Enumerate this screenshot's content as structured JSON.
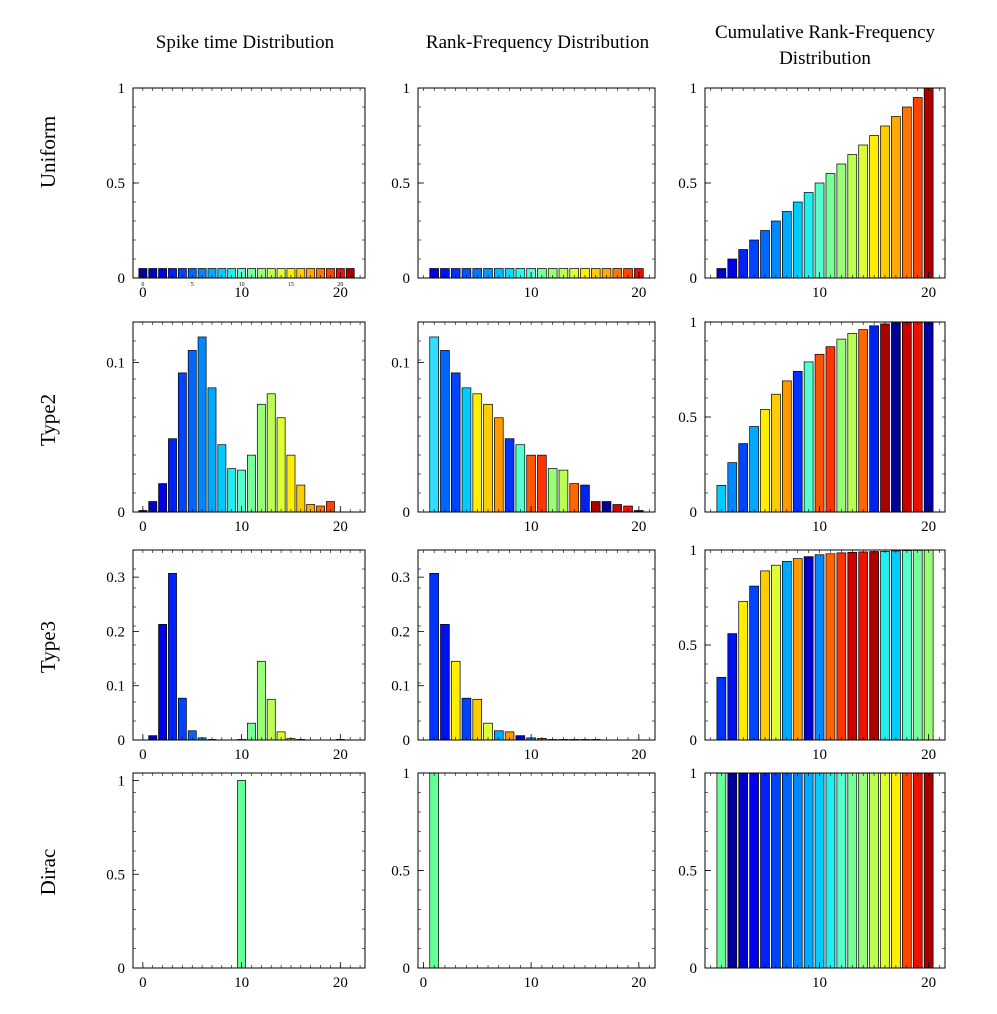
{
  "column_titles": [
    "Spike time Distribution",
    "Rank-Frequency Distribution",
    "Cumulative Rank-Frequency Distribution"
  ],
  "row_titles": [
    "Uniform",
    "Type2",
    "Type3",
    "Dirac"
  ],
  "chart_data": [
    {
      "type": "bar",
      "row": "Uniform",
      "column": "Spike time Distribution",
      "x": [
        0,
        1,
        2,
        3,
        4,
        5,
        6,
        7,
        8,
        9,
        10,
        11,
        12,
        13,
        14,
        15,
        16,
        17,
        18,
        19,
        20,
        21
      ],
      "values": [
        0.05,
        0.05,
        0.05,
        0.05,
        0.05,
        0.05,
        0.05,
        0.05,
        0.05,
        0.05,
        0.05,
        0.05,
        0.05,
        0.05,
        0.05,
        0.05,
        0.05,
        0.05,
        0.05,
        0.05,
        0.05,
        0.05
      ],
      "colors": [
        "#0000b0",
        "#0000cc",
        "#0000ee",
        "#0022ff",
        "#0044ff",
        "#0066ff",
        "#0088ff",
        "#00aaff",
        "#00ccff",
        "#22eeee",
        "#55ffcc",
        "#77ff99",
        "#99ff77",
        "#bbff55",
        "#ddff33",
        "#ffee00",
        "#ffcc00",
        "#ffaa00",
        "#ff7700",
        "#ff4400",
        "#ee1100",
        "#aa0000"
      ],
      "xlim": [
        -1,
        22.5
      ],
      "ylim": [
        0,
        1
      ],
      "xticks": [
        0,
        10,
        20
      ],
      "yticks": [
        0,
        0.5,
        1
      ],
      "ytick_labels": [
        "0",
        "0.5",
        "1"
      ],
      "minor_tick_labels": [
        {
          "x": 0,
          "label": "0"
        },
        {
          "x": 5,
          "label": "5"
        },
        {
          "x": 10,
          "label": "10"
        },
        {
          "x": 15,
          "label": "15"
        },
        {
          "x": 20,
          "label": "20"
        }
      ]
    },
    {
      "type": "bar",
      "row": "Uniform",
      "column": "Rank-Frequency Distribution",
      "x": [
        1,
        2,
        3,
        4,
        5,
        6,
        7,
        8,
        9,
        10,
        11,
        12,
        13,
        14,
        15,
        16,
        17,
        18,
        19,
        20
      ],
      "values": [
        0.05,
        0.05,
        0.05,
        0.05,
        0.05,
        0.05,
        0.05,
        0.05,
        0.05,
        0.05,
        0.05,
        0.05,
        0.05,
        0.05,
        0.05,
        0.05,
        0.05,
        0.05,
        0.05,
        0.05
      ],
      "colors": [
        "#0000dd",
        "#0011ff",
        "#0033ff",
        "#0055ff",
        "#0077ff",
        "#0099ff",
        "#00bbff",
        "#00ddff",
        "#22ffee",
        "#55ffcc",
        "#77ff99",
        "#99ff77",
        "#bbff55",
        "#ddff33",
        "#ffee00",
        "#ffcc00",
        "#ffaa00",
        "#ff7700",
        "#ff4400",
        "#ee1100"
      ],
      "xlim": [
        -0.5,
        21.5
      ],
      "ylim": [
        0,
        1
      ],
      "xticks": [
        10,
        20
      ],
      "yticks": [
        0,
        0.5,
        1
      ],
      "ytick_labels": [
        "0",
        "0.5",
        "1"
      ]
    },
    {
      "type": "bar",
      "row": "Uniform",
      "column": "Cumulative Rank-Frequency Distribution",
      "x": [
        1,
        2,
        3,
        4,
        5,
        6,
        7,
        8,
        9,
        10,
        11,
        12,
        13,
        14,
        15,
        16,
        17,
        18,
        19,
        20
      ],
      "values": [
        0.05,
        0.1,
        0.15,
        0.2,
        0.25,
        0.3,
        0.35,
        0.4,
        0.45,
        0.5,
        0.55,
        0.6,
        0.65,
        0.7,
        0.75,
        0.8,
        0.85,
        0.9,
        0.95,
        1.0
      ],
      "colors": [
        "#0000cc",
        "#0000ee",
        "#0022ff",
        "#0044ff",
        "#0066ff",
        "#0088ff",
        "#00aaff",
        "#00ccff",
        "#22eeee",
        "#55ffcc",
        "#77ff99",
        "#99ff77",
        "#bbff55",
        "#ddff33",
        "#ffee00",
        "#ffcc00",
        "#ffaa00",
        "#ff7700",
        "#ff4400",
        "#ee1100"
      ],
      "last_color": "#aa0000",
      "xlim": [
        -0.5,
        21.5
      ],
      "ylim": [
        0,
        1
      ],
      "xticks": [
        10,
        20
      ],
      "yticks": [
        0,
        0.5,
        1
      ],
      "ytick_labels": [
        "0",
        "0.5",
        "1"
      ]
    },
    {
      "type": "bar",
      "row": "Type2",
      "column": "Spike time Distribution",
      "x": [
        0,
        1,
        2,
        3,
        4,
        5,
        6,
        7,
        8,
        9,
        10,
        11,
        12,
        13,
        14,
        15,
        16,
        17,
        18,
        19,
        20,
        21
      ],
      "values": [
        0.001,
        0.007,
        0.019,
        0.049,
        0.093,
        0.108,
        0.117,
        0.083,
        0.045,
        0.029,
        0.028,
        0.038,
        0.072,
        0.079,
        0.063,
        0.038,
        0.018,
        0.005,
        0.004,
        0.007,
        0,
        0
      ],
      "colors": [
        "#0000b0",
        "#0000cc",
        "#0000ee",
        "#0022ff",
        "#0044ff",
        "#0066ff",
        "#0088ff",
        "#00aaff",
        "#00ccff",
        "#22eeee",
        "#55ffcc",
        "#77ff99",
        "#99ff77",
        "#bbff55",
        "#ddff33",
        "#ffee00",
        "#ffcc00",
        "#ffaa00",
        "#ff7700",
        "#ff4400",
        "#ee1100",
        "#aa0000"
      ],
      "xlim": [
        -1,
        22.5
      ],
      "ylim": [
        0,
        0.127
      ],
      "xticks": [
        0,
        10,
        20
      ],
      "yticks": [
        0,
        0.1
      ],
      "ytick_labels": [
        "0",
        "0.1"
      ]
    },
    {
      "type": "bar",
      "row": "Type2",
      "column": "Rank-Frequency Distribution",
      "x": [
        1,
        2,
        3,
        4,
        5,
        6,
        7,
        8,
        9,
        10,
        11,
        12,
        13,
        14,
        15,
        16,
        17,
        18,
        19,
        20
      ],
      "values": [
        0.117,
        0.108,
        0.093,
        0.083,
        0.079,
        0.072,
        0.063,
        0.049,
        0.045,
        0.038,
        0.038,
        0.029,
        0.028,
        0.019,
        0.018,
        0.007,
        0.007,
        0.005,
        0.004,
        0.001
      ],
      "colors": [
        "#33ddff",
        "#0066ff",
        "#0044ff",
        "#00ccff",
        "#ffee00",
        "#ffcc00",
        "#ff9900",
        "#0033ff",
        "#55ffcc",
        "#ff5500",
        "#ff3300",
        "#99ff77",
        "#bbff55",
        "#ff6600",
        "#0022ee",
        "#aa0000",
        "#000099",
        "#cc0000",
        "#ee1100",
        "#0000aa"
      ],
      "xlim": [
        -0.5,
        21.5
      ],
      "ylim": [
        0,
        0.127
      ],
      "xticks": [
        10,
        20
      ],
      "yticks": [
        0,
        0.1
      ],
      "ytick_labels": [
        "0",
        "0.1"
      ]
    },
    {
      "type": "bar",
      "row": "Type2",
      "column": "Cumulative Rank-Frequency Distribution",
      "x": [
        1,
        2,
        3,
        4,
        5,
        6,
        7,
        8,
        9,
        10,
        11,
        12,
        13,
        14,
        15,
        16,
        17,
        18,
        19,
        20
      ],
      "values": [
        0.14,
        0.26,
        0.36,
        0.45,
        0.54,
        0.62,
        0.69,
        0.74,
        0.79,
        0.83,
        0.87,
        0.91,
        0.94,
        0.96,
        0.98,
        0.99,
        0.995,
        0.998,
        0.999,
        1.0
      ],
      "colors": [
        "#00ccff",
        "#0088ff",
        "#0044ff",
        "#00aaff",
        "#ffee00",
        "#ffcc00",
        "#ff9900",
        "#0033ff",
        "#55ffcc",
        "#ff5500",
        "#ff3300",
        "#99ff77",
        "#bbff55",
        "#ff6600",
        "#0022ee",
        "#aa0000",
        "#000099",
        "#cc0000",
        "#ee1100",
        "#0000aa"
      ],
      "xlim": [
        -0.5,
        21.5
      ],
      "ylim": [
        0,
        1
      ],
      "xticks": [
        10,
        20
      ],
      "yticks": [
        0,
        0.5,
        1
      ],
      "ytick_labels": [
        "0",
        "0.5",
        "1"
      ]
    },
    {
      "type": "bar",
      "row": "Type3",
      "column": "Spike time Distribution",
      "x": [
        0,
        1,
        2,
        3,
        4,
        5,
        6,
        7,
        8,
        9,
        10,
        11,
        12,
        13,
        14,
        15,
        16,
        17,
        18,
        19,
        20,
        21
      ],
      "values": [
        0,
        0.008,
        0.213,
        0.307,
        0.077,
        0.017,
        0.004,
        0.001,
        0,
        0,
        0.001,
        0.031,
        0.145,
        0.075,
        0.015,
        0.003,
        0.001,
        0,
        0,
        0,
        0.001,
        0
      ],
      "colors": [
        "#0000b0",
        "#0000cc",
        "#0000ee",
        "#0022ff",
        "#0044ff",
        "#0066ff",
        "#0088ff",
        "#00aaff",
        "#00ccff",
        "#22eeee",
        "#55ffcc",
        "#77ff99",
        "#99ff77",
        "#bbff55",
        "#ddff33",
        "#ffee00",
        "#ffcc00",
        "#ffaa00",
        "#ff7700",
        "#ff4400",
        "#ee1100",
        "#aa0000"
      ],
      "xlim": [
        -1,
        22.5
      ],
      "ylim": [
        0,
        0.35
      ],
      "xticks": [
        0,
        10,
        20
      ],
      "yticks": [
        0,
        0.1,
        0.2,
        0.3
      ],
      "ytick_labels": [
        "0",
        "0.1",
        "0.2",
        "0.3"
      ]
    },
    {
      "type": "bar",
      "row": "Type3",
      "column": "Rank-Frequency Distribution",
      "x": [
        1,
        2,
        3,
        4,
        5,
        6,
        7,
        8,
        9,
        10,
        11,
        12,
        13,
        14,
        15,
        16,
        17,
        18,
        19,
        20
      ],
      "values": [
        0.307,
        0.213,
        0.145,
        0.077,
        0.075,
        0.031,
        0.017,
        0.015,
        0.008,
        0.004,
        0.003,
        0.001,
        0.001,
        0.001,
        0.001,
        0.001,
        0,
        0,
        0,
        0
      ],
      "colors": [
        "#0033ff",
        "#0011ee",
        "#ffee00",
        "#0044ff",
        "#ffcc00",
        "#ddff33",
        "#00aaff",
        "#ff9900",
        "#0000cc",
        "#0088ff",
        "#ff6600",
        "#ff3300",
        "#cc0000",
        "#ee1100",
        "#aa0000",
        "#22eeee",
        "#00ccff",
        "#55ffcc",
        "#77ff99",
        "#99ff77"
      ],
      "xlim": [
        -0.5,
        21.5
      ],
      "ylim": [
        0,
        0.35
      ],
      "xticks": [
        10,
        20
      ],
      "yticks": [
        0,
        0.1,
        0.2,
        0.3
      ],
      "ytick_labels": [
        "0",
        "0.1",
        "0.2",
        "0.3"
      ]
    },
    {
      "type": "bar",
      "row": "Type3",
      "column": "Cumulative Rank-Frequency Distribution",
      "x": [
        1,
        2,
        3,
        4,
        5,
        6,
        7,
        8,
        9,
        10,
        11,
        12,
        13,
        14,
        15,
        16,
        17,
        18,
        19,
        20
      ],
      "values": [
        0.33,
        0.56,
        0.73,
        0.81,
        0.89,
        0.92,
        0.94,
        0.955,
        0.965,
        0.975,
        0.98,
        0.985,
        0.988,
        0.99,
        0.992,
        0.993,
        0.995,
        0.997,
        0.998,
        0.999
      ],
      "colors": [
        "#0033ff",
        "#0011ee",
        "#ffee00",
        "#0044ff",
        "#ffcc00",
        "#ddff33",
        "#00aaff",
        "#ff9900",
        "#0000cc",
        "#0088ff",
        "#ff6600",
        "#ff3300",
        "#cc0000",
        "#ee1100",
        "#aa0000",
        "#22eeee",
        "#00ccff",
        "#55ffcc",
        "#77ff99",
        "#99ff77"
      ],
      "xlim": [
        -0.5,
        21.5
      ],
      "ylim": [
        0,
        1
      ],
      "xticks": [
        10,
        20
      ],
      "yticks": [
        0,
        0.5,
        1
      ],
      "ytick_labels": [
        "0",
        "0.5",
        "1"
      ]
    },
    {
      "type": "bar",
      "row": "Dirac",
      "column": "Spike time Distribution",
      "x": [
        10
      ],
      "values": [
        1.0
      ],
      "colors": [
        "#66ff99"
      ],
      "xlim": [
        -1,
        22.5
      ],
      "ylim": [
        0,
        1.04
      ],
      "xticks": [
        0,
        10,
        20
      ],
      "yticks": [
        0,
        0.5,
        1
      ],
      "ytick_labels": [
        "0",
        "0.5",
        "1"
      ]
    },
    {
      "type": "bar",
      "row": "Dirac",
      "column": "Rank-Frequency Distribution",
      "x": [
        1
      ],
      "values": [
        1.0
      ],
      "colors": [
        "#66ff99"
      ],
      "xlim": [
        -0.5,
        21.5
      ],
      "ylim": [
        0,
        1.0
      ],
      "xticks": [
        0,
        10,
        20
      ],
      "yticks": [
        0,
        0.5,
        1
      ],
      "ytick_labels": [
        "0",
        "0.5",
        "1"
      ]
    },
    {
      "type": "bar",
      "row": "Dirac",
      "column": "Cumulative Rank-Frequency Distribution",
      "x": [
        1,
        2,
        3,
        4,
        5,
        6,
        7,
        8,
        9,
        10,
        11,
        12,
        13,
        14,
        15,
        16,
        17,
        18,
        19,
        20
      ],
      "values": [
        1,
        1,
        1,
        1,
        1,
        1,
        1,
        1,
        1,
        1,
        1,
        1,
        1,
        1,
        1,
        1,
        1,
        1,
        1,
        1
      ],
      "colors": [
        "#66ff99",
        "#000099",
        "#0000cc",
        "#0000ee",
        "#0022ff",
        "#0044ff",
        "#0066ff",
        "#0088ff",
        "#00aaff",
        "#00ccff",
        "#22eeee",
        "#55ffcc",
        "#77ff99",
        "#99ff77",
        "#bbff55",
        "#ddff33",
        "#ffee00",
        "#ffcc00",
        "#ffaa00",
        "#ff7700"
      ],
      "tail_colors": [
        "#ff4400",
        "#ee1100",
        "#aa0000"
      ],
      "xlim": [
        -0.5,
        21.5
      ],
      "ylim": [
        0,
        1.0
      ],
      "xticks": [
        10,
        20
      ],
      "yticks": [
        0,
        0.5,
        1
      ],
      "ytick_labels": [
        "0",
        "0.5",
        "1"
      ]
    }
  ]
}
